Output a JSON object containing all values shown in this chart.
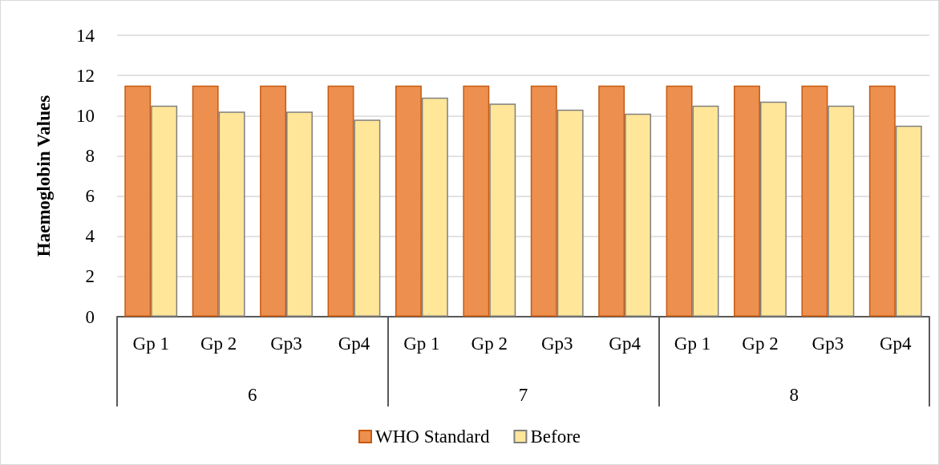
{
  "chart_data": {
    "type": "bar",
    "ylabel": "Haemoglobin Values",
    "categories": [
      "Gp 1",
      "Gp 2",
      "Gp3",
      "Gp4",
      "Gp 1",
      "Gp 2",
      "Gp3",
      "Gp4",
      "Gp 1",
      "Gp 2",
      "Gp3",
      "Gp4"
    ],
    "annotations": [
      "6",
      "7",
      "8"
    ],
    "series": [
      {
        "name": "WHO Standard",
        "color": "#ed8f4e",
        "values": [
          11.5,
          11.5,
          11.5,
          11.5,
          11.5,
          11.5,
          11.5,
          11.5,
          11.5,
          11.5,
          11.5,
          11.5
        ]
      },
      {
        "name": "Before",
        "color": "#ffe699",
        "values": [
          10.5,
          10.2,
          10.2,
          9.8,
          10.9,
          10.6,
          10.3,
          10.1,
          10.5,
          10.7,
          10.5,
          9.5
        ]
      }
    ],
    "ylim": [
      0,
      14
    ],
    "yticks": [
      0,
      2,
      4,
      6,
      8,
      10,
      12,
      14
    ],
    "grid": "y",
    "legend": "bottom"
  }
}
